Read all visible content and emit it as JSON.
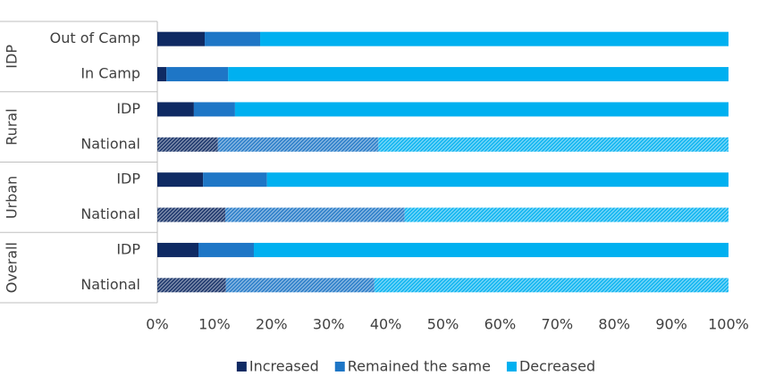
{
  "chart_data": {
    "type": "stacked-bar-horizontal",
    "groups": [
      {
        "name": "IDP",
        "categories": [
          "Out of Camp",
          "In Camp"
        ]
      },
      {
        "name": "Rural",
        "categories": [
          "IDP",
          "National"
        ]
      },
      {
        "name": "Urban",
        "categories": [
          "IDP",
          "National"
        ]
      },
      {
        "name": "Overall",
        "categories": [
          "IDP",
          "National"
        ]
      }
    ],
    "hatched": [
      false,
      false,
      false,
      true,
      false,
      true,
      false,
      true
    ],
    "series": [
      {
        "name": "Increased",
        "color": "#0f2a63",
        "values": [
          8.3,
          1.6,
          6.4,
          10.6,
          8.0,
          11.9,
          7.2,
          12.0
        ]
      },
      {
        "name": "Remained the same",
        "color": "#1e76c6",
        "values": [
          9.7,
          10.8,
          7.2,
          28.1,
          11.2,
          31.4,
          9.7,
          26.0
        ]
      },
      {
        "name": "Decreased",
        "color": "#00b0f0",
        "values": [
          82.0,
          87.6,
          86.4,
          61.3,
          80.8,
          56.7,
          83.1,
          62.0
        ]
      }
    ],
    "xlim": [
      0,
      100
    ],
    "xticks": [
      {
        "value": 0,
        "label": "0%"
      },
      {
        "value": 10,
        "label": "10%"
      },
      {
        "value": 20,
        "label": "20%"
      },
      {
        "value": 30,
        "label": "30%"
      },
      {
        "value": 40,
        "label": "40%"
      },
      {
        "value": 50,
        "label": "50%"
      },
      {
        "value": 60,
        "label": "60%"
      },
      {
        "value": 70,
        "label": "70%"
      },
      {
        "value": 80,
        "label": "80%"
      },
      {
        "value": 90,
        "label": "90%"
      },
      {
        "value": 100,
        "label": "100%"
      }
    ],
    "legend": "bottom"
  }
}
